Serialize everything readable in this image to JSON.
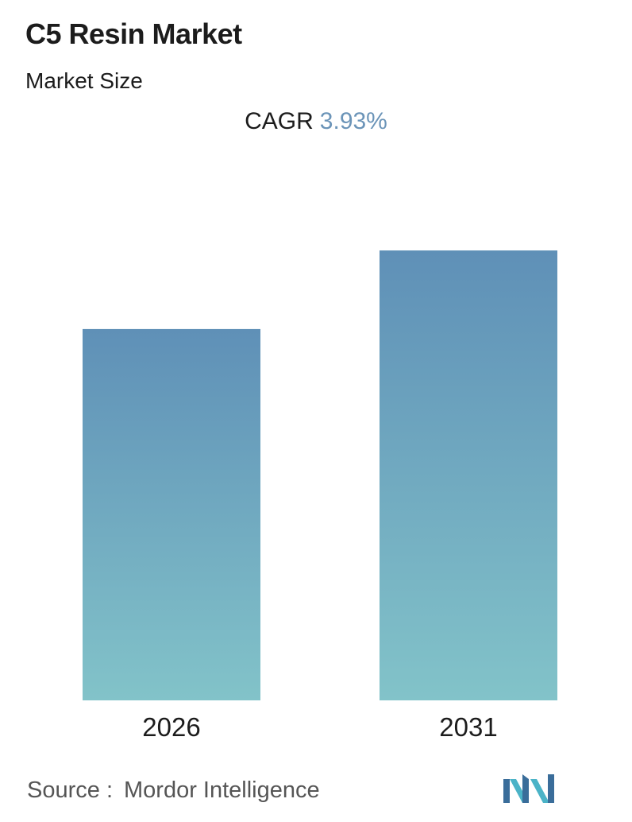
{
  "header": {
    "title": "C5 Resin Market",
    "subtitle": "Market Size",
    "cagr_label": "CAGR",
    "cagr_value": "3.93%"
  },
  "footer": {
    "source_label": "Source :",
    "source_name": "Mordor Intelligence",
    "logo_icon": "mordor-intelligence-logo-icon"
  },
  "colors": {
    "bar_top": "#5f90b7",
    "bar_bottom": "#82c3c9",
    "cagr_accent": "#6b94b8",
    "logo_dark": "#3a6d9a",
    "logo_light": "#4bb3c7"
  },
  "chart_data": {
    "type": "bar",
    "categories": [
      "2026",
      "2031"
    ],
    "values": [
      78.9,
      95.6
    ],
    "ylim": [
      0,
      100
    ],
    "grid": false,
    "legend": "none"
  }
}
